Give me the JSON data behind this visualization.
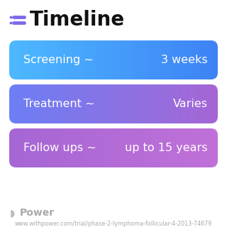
{
  "title": "Timeline",
  "title_fontsize": 20,
  "title_fontweight": "bold",
  "title_color": "#111111",
  "icon_color": "#7c6be8",
  "background_color": "#ffffff",
  "rows": [
    {
      "label": "Screening ~",
      "value": "3 weeks",
      "grad_left": "#4db8ff",
      "grad_right": "#3d82f5"
    },
    {
      "label": "Treatment ~",
      "value": "Varies",
      "grad_left": "#6d7ef5",
      "grad_right": "#a566d4"
    },
    {
      "label": "Follow ups ~",
      "value": "up to 15 years",
      "grad_left": "#a566d4",
      "grad_right": "#c070d8"
    }
  ],
  "row_fontsize": 11.5,
  "row_text_color": "#ffffff",
  "footer_text": "Power",
  "footer_url": "www.withpower.com/trial/phase-2-lymphoma-follicular-4-2013-74679",
  "footer_color": "#aaaaaa",
  "footer_fontsize": 5.8,
  "footer_icon_color": "#bbbbbb"
}
